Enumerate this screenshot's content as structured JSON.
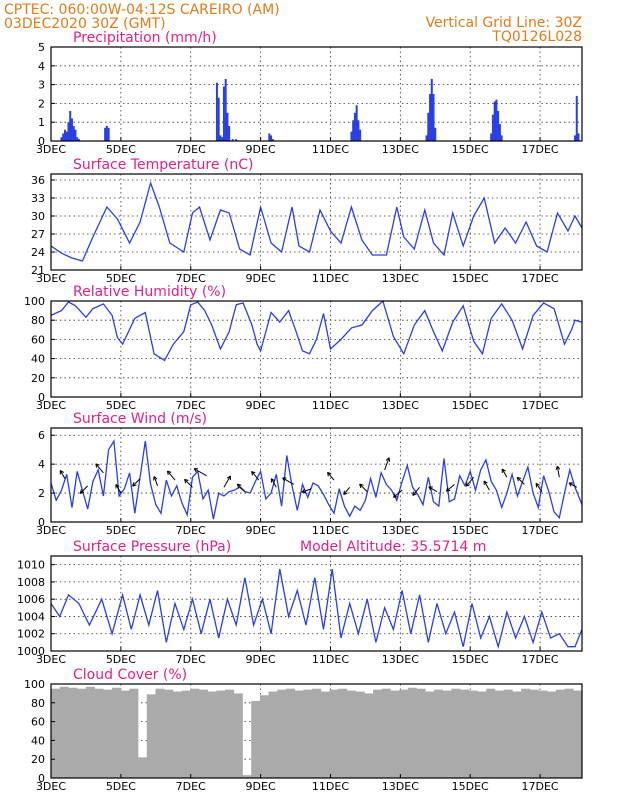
{
  "header": {
    "line1": "CPTEC:   060:00W-04:12S  CAREIRO (AM)",
    "line2": "03DEC2020 30Z (GMT)",
    "grid_note": "Vertical Grid Line: 30Z",
    "code": "TQ0126L028"
  },
  "colors": {
    "header": "#e07b1a",
    "title": "#e0208c",
    "series": "#2a3fe0",
    "cloud": "#aaaaaa",
    "grid": "#333333"
  },
  "chart_data": [
    {
      "id": "precip",
      "type": "bar",
      "title": "Precipitation (mm/h)",
      "ylim": [
        0,
        5
      ],
      "yticks": [
        0,
        1,
        2,
        3,
        4,
        5
      ],
      "x_start_day": 3,
      "x_end_day": 18.2,
      "x_tick_days": [
        3,
        5,
        7,
        9,
        11,
        13,
        15,
        17
      ],
      "x_tick_labels": [
        "3DEC",
        "5DEC",
        "7DEC",
        "9DEC",
        "11DEC",
        "13DEC",
        "15DEC",
        "17DEC"
      ],
      "x": [
        3.3,
        3.35,
        3.4,
        3.45,
        3.5,
        3.55,
        3.6,
        3.65,
        3.7,
        3.75,
        3.8,
        4.55,
        4.6,
        4.65,
        7.75,
        7.8,
        7.85,
        7.9,
        7.95,
        8.0,
        8.05,
        8.1,
        8.2,
        8.3,
        9.25,
        9.3,
        9.35,
        11.6,
        11.65,
        11.7,
        11.75,
        11.8,
        11.85,
        13.75,
        13.8,
        13.85,
        13.9,
        13.95,
        14.0,
        15.6,
        15.65,
        15.7,
        15.75,
        15.8,
        15.85,
        15.9,
        18.0,
        18.05,
        18.1
      ],
      "values": [
        0.2,
        0.4,
        0.6,
        0.5,
        1.0,
        1.6,
        1.2,
        0.8,
        0.6,
        0.2,
        0.1,
        0.7,
        0.8,
        0.7,
        3.1,
        2.3,
        0.3,
        0.2,
        2.9,
        3.3,
        1.5,
        0.8,
        0.1,
        0.1,
        0.4,
        0.3,
        0.1,
        0.5,
        1.1,
        1.5,
        1.9,
        1.1,
        0.6,
        0.3,
        1.5,
        2.5,
        3.3,
        2.5,
        0.7,
        0.4,
        1.4,
        2.1,
        2.2,
        1.6,
        0.9,
        0.3,
        0.3,
        2.4,
        0.4
      ]
    },
    {
      "id": "temp",
      "type": "line",
      "title": "Surface Temperature (nC)",
      "ylim": [
        21,
        37
      ],
      "yticks": [
        21,
        24,
        27,
        30,
        33,
        36
      ],
      "x_start_day": 3,
      "x_end_day": 18.2,
      "x_tick_days": [
        3,
        5,
        7,
        9,
        11,
        13,
        15,
        17
      ],
      "x_tick_labels": [
        "3DEC",
        "5DEC",
        "7DEC",
        "9DEC",
        "11DEC",
        "13DEC",
        "15DEC",
        "17DEC"
      ],
      "x": [
        3.0,
        3.3,
        3.6,
        3.9,
        4.2,
        4.6,
        4.9,
        5.25,
        5.55,
        5.85,
        6.1,
        6.4,
        6.8,
        7.05,
        7.25,
        7.55,
        7.85,
        8.1,
        8.4,
        8.7,
        9.0,
        9.3,
        9.6,
        9.9,
        10.1,
        10.4,
        10.7,
        11.0,
        11.3,
        11.6,
        11.9,
        12.2,
        12.6,
        12.9,
        13.1,
        13.4,
        13.7,
        13.95,
        14.25,
        14.5,
        14.8,
        15.1,
        15.4,
        15.7,
        16.0,
        16.3,
        16.6,
        16.9,
        17.2,
        17.5,
        17.8,
        18.0,
        18.2
      ],
      "values": [
        25,
        23.8,
        23,
        22.5,
        26.5,
        31.5,
        29.5,
        25.5,
        29,
        35.5,
        31.5,
        25.5,
        24,
        30.5,
        31.5,
        26,
        31,
        30.5,
        24.5,
        23.5,
        31.5,
        25.5,
        24,
        31.5,
        25,
        24,
        31,
        27.5,
        25.5,
        31.5,
        26,
        23.5,
        23.5,
        31.5,
        26.5,
        24.5,
        31,
        25.5,
        23.5,
        30.5,
        25,
        30,
        33,
        25.5,
        28,
        25.5,
        29,
        25,
        24,
        30.5,
        27.5,
        30,
        28
      ]
    },
    {
      "id": "rh",
      "type": "line",
      "title": "Relative Humidity (%)",
      "ylim": [
        0,
        100
      ],
      "yticks": [
        0,
        20,
        40,
        60,
        80,
        100
      ],
      "x_start_day": 3,
      "x_end_day": 18.2,
      "x_tick_days": [
        3,
        5,
        7,
        9,
        11,
        13,
        15,
        17
      ],
      "x_tick_labels": [
        "3DEC",
        "5DEC",
        "7DEC",
        "9DEC",
        "11DEC",
        "13DEC",
        "15DEC",
        "17DEC"
      ],
      "x": [
        3.0,
        3.3,
        3.5,
        3.7,
        4.0,
        4.2,
        4.5,
        4.75,
        4.9,
        5.05,
        5.4,
        5.7,
        5.95,
        6.25,
        6.5,
        6.8,
        7.0,
        7.2,
        7.4,
        7.6,
        7.85,
        8.1,
        8.3,
        8.5,
        8.75,
        8.9,
        9.0,
        9.3,
        9.55,
        9.8,
        10.0,
        10.2,
        10.4,
        10.6,
        10.8,
        11.0,
        11.3,
        11.6,
        11.9,
        12.2,
        12.5,
        12.8,
        13.1,
        13.4,
        13.7,
        13.95,
        14.2,
        14.5,
        14.8,
        15.1,
        15.35,
        15.6,
        15.9,
        16.2,
        16.5,
        16.8,
        17.1,
        17.4,
        17.7,
        17.9,
        18.0,
        18.2
      ],
      "values": [
        85,
        90,
        99,
        95,
        83,
        92,
        97,
        85,
        62,
        55,
        82,
        88,
        45,
        38,
        55,
        68,
        96,
        99,
        90,
        75,
        50,
        68,
        96,
        98,
        75,
        55,
        48,
        88,
        78,
        90,
        70,
        48,
        45,
        60,
        87,
        50,
        60,
        72,
        75,
        90,
        100,
        63,
        45,
        75,
        90,
        68,
        48,
        78,
        95,
        58,
        45,
        82,
        97,
        80,
        50,
        85,
        98,
        92,
        55,
        70,
        80,
        78
      ]
    },
    {
      "id": "wind",
      "type": "line",
      "title": "Surface Wind (m/s)",
      "ylim": [
        0,
        6.5
      ],
      "yticks": [
        0,
        2,
        4,
        6
      ],
      "x_start_day": 3,
      "x_end_day": 18.2,
      "x_tick_days": [
        3,
        5,
        7,
        9,
        11,
        13,
        15,
        17
      ],
      "x_tick_labels": [
        "3DEC",
        "5DEC",
        "7DEC",
        "9DEC",
        "11DEC",
        "13DEC",
        "15DEC",
        "17DEC"
      ],
      "x": [
        3.0,
        3.15,
        3.3,
        3.45,
        3.6,
        3.75,
        3.9,
        4.05,
        4.2,
        4.35,
        4.5,
        4.65,
        4.8,
        4.95,
        5.1,
        5.25,
        5.4,
        5.55,
        5.7,
        5.85,
        6.0,
        6.15,
        6.3,
        6.45,
        6.6,
        6.75,
        6.9,
        7.05,
        7.2,
        7.35,
        7.5,
        7.65,
        7.8,
        7.95,
        8.1,
        8.25,
        8.4,
        8.55,
        8.7,
        8.85,
        9.0,
        9.15,
        9.3,
        9.45,
        9.6,
        9.75,
        9.9,
        10.05,
        10.2,
        10.35,
        10.5,
        10.65,
        10.8,
        10.95,
        11.1,
        11.25,
        11.4,
        11.55,
        11.7,
        11.85,
        12.0,
        12.15,
        12.3,
        12.45,
        12.6,
        12.75,
        12.9,
        13.05,
        13.2,
        13.35,
        13.5,
        13.65,
        13.8,
        13.95,
        14.1,
        14.25,
        14.4,
        14.55,
        14.7,
        14.85,
        15.0,
        15.15,
        15.3,
        15.45,
        15.6,
        15.75,
        15.9,
        16.05,
        16.2,
        16.35,
        16.5,
        16.65,
        16.8,
        16.95,
        17.1,
        17.25,
        17.4,
        17.55,
        17.7,
        17.85,
        18.0,
        18.2
      ],
      "values": [
        2.7,
        1.5,
        2.2,
        3.3,
        1.0,
        3.5,
        2.2,
        0.9,
        2.8,
        3.6,
        1.8,
        5.0,
        5.6,
        1.8,
        2.3,
        3.4,
        0.6,
        3.1,
        5.6,
        2.6,
        1.2,
        0.6,
        2.9,
        1.8,
        2.5,
        1.3,
        0.5,
        3.1,
        3.5,
        1.6,
        2.2,
        0.2,
        2.0,
        1.8,
        2.1,
        2.2,
        2.4,
        2.1,
        2.0,
        2.8,
        3.5,
        1.6,
        2.0,
        3.3,
        1.1,
        4.6,
        2.5,
        0.8,
        2.6,
        1.7,
        2.7,
        2.5,
        1.9,
        1.2,
        0.6,
        2.3,
        1.1,
        0.4,
        1.1,
        0.8,
        1.5,
        3.0,
        1.7,
        3.4,
        2.6,
        2.2,
        1.5,
        2.8,
        3.9,
        2.4,
        1.9,
        1.2,
        3.1,
        1.4,
        1.1,
        4.4,
        1.4,
        1.6,
        3.2,
        2.5,
        3.5,
        2.2,
        3.6,
        4.3,
        2.8,
        2.2,
        1.0,
        2.0,
        3.3,
        1.8,
        2.8,
        3.8,
        2.0,
        1.0,
        3.2,
        2.1,
        0.7,
        0.3,
        2.0,
        3.6,
        2.4,
        1.2
      ],
      "barb_x": [
        3.4,
        4.05,
        4.5,
        5.0,
        5.55,
        6.05,
        6.55,
        7.05,
        7.45,
        7.95,
        8.55,
        8.95,
        9.45,
        9.95,
        10.45,
        11.1,
        11.55,
        12.05,
        12.55,
        13.05,
        13.55,
        14.05,
        14.55,
        15.1,
        15.55,
        16.05,
        16.55,
        17.05,
        17.55,
        18.05
      ],
      "barb_y": [
        3.0,
        2.5,
        3.4,
        2.0,
        3.0,
        2.5,
        2.9,
        2.4,
        3.2,
        2.4,
        2.1,
        2.9,
        2.4,
        2.6,
        2.3,
        2.9,
        2.4,
        2.1,
        3.6,
        2.2,
        2.4,
        2.1,
        2.6,
        3.1,
        2.2,
        3.1,
        2.6,
        2.1,
        3.1,
        2.4
      ],
      "barb_dir_deg": [
        330,
        225,
        320,
        330,
        225,
        340,
        320,
        315,
        300,
        30,
        315,
        320,
        330,
        300,
        250,
        320,
        220,
        315,
        20,
        230,
        220,
        300,
        230,
        220,
        330,
        330,
        315,
        325,
        350,
        300
      ],
      "barb_speed": [
        1.8,
        2.2,
        2.6,
        2.0,
        2.2,
        2.0,
        2.6,
        2.4,
        3.4,
        3.0,
        2.2,
        2.4,
        2.0,
        3.0,
        2.0,
        2.0,
        1.8,
        2.2,
        3.0,
        2.4,
        2.2,
        1.8,
        2.2,
        2.6,
        2.2,
        1.8,
        2.0,
        2.0,
        2.4,
        1.6
      ]
    },
    {
      "id": "pres",
      "type": "line",
      "title": "Surface Pressure (hPa)",
      "subtitle": "Model Altitude: 35.5714 m",
      "ylim": [
        1000,
        1011
      ],
      "yticks": [
        1000,
        1002,
        1004,
        1006,
        1008,
        1010
      ],
      "x_start_day": 3,
      "x_end_day": 18.2,
      "x_tick_days": [
        3,
        5,
        7,
        9,
        11,
        13,
        15,
        17
      ],
      "x_tick_labels": [
        "3DEC",
        "5DEC",
        "7DEC",
        "9DEC",
        "11DEC",
        "13DEC",
        "15DEC",
        "17DEC"
      ],
      "x": [
        3.0,
        3.25,
        3.5,
        3.8,
        4.1,
        4.45,
        4.75,
        5.05,
        5.3,
        5.55,
        5.8,
        6.05,
        6.3,
        6.55,
        6.8,
        7.05,
        7.3,
        7.55,
        7.8,
        8.05,
        8.3,
        8.55,
        8.8,
        9.05,
        9.3,
        9.55,
        9.8,
        10.05,
        10.3,
        10.55,
        10.8,
        11.05,
        11.3,
        11.55,
        11.8,
        12.05,
        12.3,
        12.55,
        12.8,
        13.05,
        13.3,
        13.55,
        13.8,
        14.05,
        14.3,
        14.55,
        14.8,
        15.05,
        15.3,
        15.55,
        15.8,
        16.05,
        16.3,
        16.55,
        16.8,
        17.05,
        17.3,
        17.55,
        17.8,
        18.0,
        18.2
      ],
      "values": [
        1005.5,
        1004.0,
        1006.5,
        1005.5,
        1003.0,
        1006.0,
        1002.0,
        1006.5,
        1002.5,
        1006.5,
        1003.0,
        1007.0,
        1001.0,
        1005.5,
        1002.5,
        1006.0,
        1002.0,
        1006.0,
        1001.5,
        1006.0,
        1003.0,
        1008.5,
        1003.0,
        1006.0,
        1002.0,
        1009.5,
        1004.0,
        1007.0,
        1003.0,
        1008.5,
        1002.5,
        1009.5,
        1001.5,
        1005.5,
        1002.0,
        1006.0,
        1001.0,
        1005.0,
        1002.5,
        1007.0,
        1002.0,
        1006.5,
        1001.0,
        1005.5,
        1002.0,
        1004.5,
        1000.5,
        1005.5,
        1001.5,
        1004.0,
        1000.5,
        1004.5,
        1001.5,
        1004.0,
        1001.0,
        1004.5,
        1001.5,
        1002.0,
        1000.5,
        1000.5,
        1002.5
      ]
    },
    {
      "id": "cloud",
      "type": "bar",
      "title": "Cloud Cover (%)",
      "ylim": [
        0,
        100
      ],
      "yticks": [
        0,
        20,
        40,
        60,
        80,
        100
      ],
      "x_start_day": 3,
      "x_end_day": 18.2,
      "x_tick_days": [
        3,
        5,
        7,
        9,
        11,
        13,
        15,
        17
      ],
      "x_tick_labels": [
        "3DEC",
        "5DEC",
        "7DEC",
        "9DEC",
        "11DEC",
        "13DEC",
        "15DEC",
        "17DEC"
      ],
      "x": [
        3.0,
        3.25,
        3.5,
        3.75,
        4.0,
        4.25,
        4.5,
        4.75,
        5.0,
        5.25,
        5.5,
        5.75,
        6.0,
        6.25,
        6.5,
        6.75,
        7.0,
        7.25,
        7.5,
        7.75,
        8.0,
        8.25,
        8.5,
        8.75,
        9.0,
        9.25,
        9.5,
        9.75,
        10.0,
        10.25,
        10.5,
        10.75,
        11.0,
        11.25,
        11.5,
        11.75,
        12.0,
        12.25,
        12.5,
        12.75,
        13.0,
        13.25,
        13.5,
        13.75,
        14.0,
        14.25,
        14.5,
        14.75,
        15.0,
        15.25,
        15.5,
        15.75,
        16.0,
        16.25,
        16.5,
        16.75,
        17.0,
        17.25,
        17.5,
        17.75,
        18.0
      ],
      "values": [
        95,
        97,
        96,
        95,
        97,
        95,
        94,
        96,
        93,
        95,
        22,
        89,
        95,
        94,
        92,
        93,
        95,
        94,
        92,
        93,
        94,
        90,
        3,
        82,
        88,
        92,
        94,
        95,
        93,
        94,
        95,
        92,
        94,
        95,
        93,
        92,
        90,
        94,
        95,
        93,
        94,
        96,
        95,
        92,
        94,
        93,
        95,
        94,
        93,
        92,
        95,
        93,
        94,
        92,
        95,
        94,
        93,
        92,
        94,
        95,
        93
      ]
    }
  ]
}
